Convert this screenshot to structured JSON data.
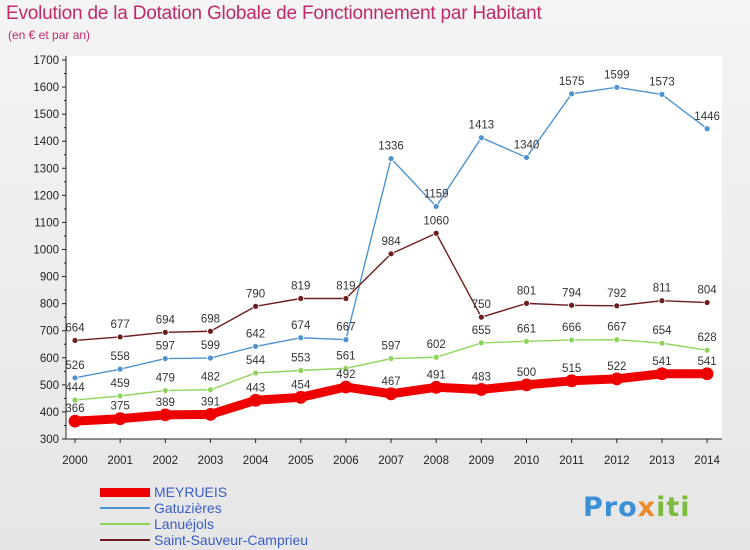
{
  "header": {
    "title": "Evolution de la Dotation Globale de Fonctionnement par Habitant",
    "subtitle": "(en € et par an)"
  },
  "logo": {
    "text": "Proxiti",
    "parts": [
      "Pro",
      "x",
      "iti"
    ]
  },
  "colors": {
    "title": "#c0296a",
    "MEYRUEIS": "#ee0000",
    "Gatuzières": "#4e93cf",
    "Lanuéjols": "#8fd45a",
    "Saint-Sauveur-Camprieu": "#6e1d1d"
  },
  "chart_data": {
    "type": "line",
    "title": "Evolution de la Dotation Globale de Fonctionnement par Habitant",
    "subtitle": "(en € et par an)",
    "xlabel": "",
    "ylabel": "",
    "categories": [
      "2000",
      "2001",
      "2002",
      "2003",
      "2004",
      "2005",
      "2006",
      "2007",
      "2008",
      "2009",
      "2010",
      "2011",
      "2012",
      "2013",
      "2014"
    ],
    "ylim": [
      300,
      1700
    ],
    "yticks": [
      300,
      400,
      500,
      600,
      700,
      800,
      900,
      1000,
      1100,
      1200,
      1300,
      1400,
      1500,
      1600,
      1700
    ],
    "grid": false,
    "legend_position": "bottom-left",
    "series": [
      {
        "name": "MEYRUEIS",
        "color": "#ee0000",
        "values": [
          366,
          375,
          389,
          391,
          443,
          454,
          492,
          467,
          491,
          483,
          500,
          515,
          522,
          541,
          541
        ]
      },
      {
        "name": "Gatuzières",
        "color": "#4e93cf",
        "values": [
          526,
          558,
          597,
          599,
          642,
          674,
          667,
          1336,
          1159,
          1413,
          1340,
          1575,
          1599,
          1573,
          1446
        ]
      },
      {
        "name": "Lanuéjols",
        "color": "#8fd45a",
        "values": [
          444,
          459,
          479,
          482,
          544,
          553,
          561,
          597,
          602,
          655,
          661,
          666,
          667,
          654,
          628
        ]
      },
      {
        "name": "Saint-Sauveur-Camprieu",
        "color": "#6e1d1d",
        "values": [
          664,
          677,
          694,
          698,
          790,
          819,
          819,
          984,
          1060,
          750,
          801,
          794,
          792,
          811,
          804
        ]
      }
    ]
  }
}
